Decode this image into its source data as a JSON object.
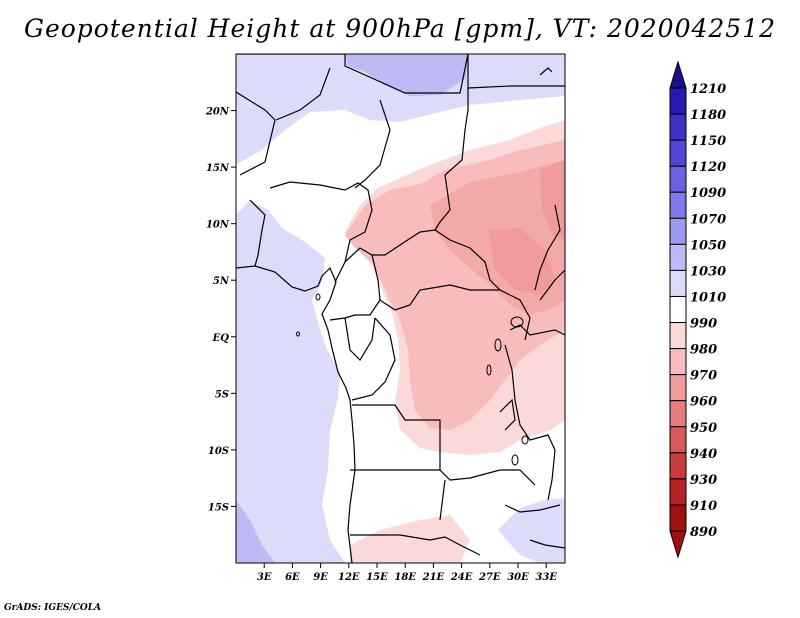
{
  "title": "Geopotential Height at 900hPa [gpm], VT: 2020042512",
  "footer": "GrADS: IGES/COLA",
  "map": {
    "projection": "lat-lon",
    "lon_range": [
      0,
      35
    ],
    "lat_range": [
      -20,
      25
    ],
    "x_ticks": [
      {
        "value": 3,
        "label": "3E"
      },
      {
        "value": 6,
        "label": "6E"
      },
      {
        "value": 9,
        "label": "9E"
      },
      {
        "value": 12,
        "label": "12E"
      },
      {
        "value": 15,
        "label": "15E"
      },
      {
        "value": 18,
        "label": "18E"
      },
      {
        "value": 21,
        "label": "21E"
      },
      {
        "value": 24,
        "label": "24E"
      },
      {
        "value": 27,
        "label": "27E"
      },
      {
        "value": 30,
        "label": "30E"
      },
      {
        "value": 33,
        "label": "33E"
      }
    ],
    "y_ticks": [
      {
        "value": 20,
        "label": "20N"
      },
      {
        "value": 15,
        "label": "15N"
      },
      {
        "value": 10,
        "label": "10N"
      },
      {
        "value": 5,
        "label": "5N"
      },
      {
        "value": 0,
        "label": "EQ"
      },
      {
        "value": -5,
        "label": "5S"
      },
      {
        "value": -10,
        "label": "10S"
      },
      {
        "value": -15,
        "label": "15S"
      }
    ]
  },
  "colorbar": {
    "labels": [
      "1210",
      "1180",
      "1150",
      "1120",
      "1090",
      "1070",
      "1050",
      "1030",
      "1010",
      "990",
      "980",
      "970",
      "960",
      "950",
      "940",
      "930",
      "910",
      "890"
    ],
    "colors": [
      "#1a108e",
      "#241bb0",
      "#3a33c4",
      "#5048d4",
      "#6a62e0",
      "#8178ea",
      "#9d98f0",
      "#bdbaf5",
      "#dcdcfa",
      "#ffffff",
      "#fbd9d9",
      "#f8bcbc",
      "#f09b9b",
      "#e57b7b",
      "#d95959",
      "#c93c3c",
      "#b62323",
      "#a01212"
    ]
  }
}
